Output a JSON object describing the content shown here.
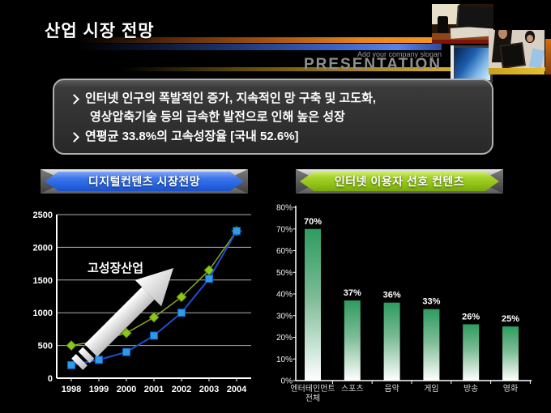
{
  "header": {
    "title": "산업 시장 전망",
    "slogan": "Add your company slogan",
    "brand": "PRESENTATION"
  },
  "summary": {
    "bullet1_line1": "인터넷 인구의 폭발적인 증가, 지속적인 망 구축 및 고도화,",
    "bullet1_line2": "영상압축기술 등의 급속한 발전으로 인해 높은 성장",
    "bullet2": "연평균 33.8%의 고속성장율 [국내 52.6%]"
  },
  "colors": {
    "banner_blue": "#2563E0",
    "banner_green": "#96C818",
    "line_green": "#8CC818",
    "line_blue": "#1C4FD0",
    "marker_blue": "#2D9BE8",
    "bar_green_top": "#2E9C60",
    "bar_bottom": "#FFFFFF"
  },
  "chart_data": [
    {
      "type": "line",
      "title": "디지털컨텐츠 시장전망",
      "x": [
        "1998",
        "1999",
        "2000",
        "2001",
        "2002",
        "2003",
        "2004"
      ],
      "series": [
        {
          "name": "series-green-diamond",
          "marker": "diamond",
          "line_color": "#8aa818",
          "marker_color": "#8CC818",
          "marker_stroke": "#6E9A10",
          "values": [
            500,
            570,
            690,
            930,
            1240,
            1650,
            2250
          ]
        },
        {
          "name": "series-blue-square",
          "marker": "square",
          "line_color": "#1C4FD0",
          "marker_color": "#2D9BE8",
          "marker_stroke": "#0F5FBE",
          "values": [
            200,
            280,
            400,
            650,
            1000,
            1520,
            2250
          ]
        }
      ],
      "ylim": [
        0,
        2500
      ],
      "yticks": [
        0,
        500,
        1000,
        1500,
        2000,
        2500
      ],
      "grid": true,
      "legend": "none",
      "annotation": "고성장산업"
    },
    {
      "type": "bar",
      "title": "인터넷 이용자 선호 컨텐츠",
      "categories": [
        "엔터테인먼트\n전체",
        "스포츠",
        "음악",
        "게임",
        "방송",
        "영화"
      ],
      "values": [
        70,
        37,
        36,
        33,
        26,
        25
      ],
      "value_labels": [
        "70%",
        "37%",
        "36%",
        "33%",
        "26%",
        "25%"
      ],
      "ylim": [
        0,
        80
      ],
      "yticks": [
        "0%",
        "10%",
        "20%",
        "30%",
        "40%",
        "50%",
        "60%",
        "70%",
        "80%"
      ],
      "grid": false,
      "legend": "none"
    }
  ]
}
